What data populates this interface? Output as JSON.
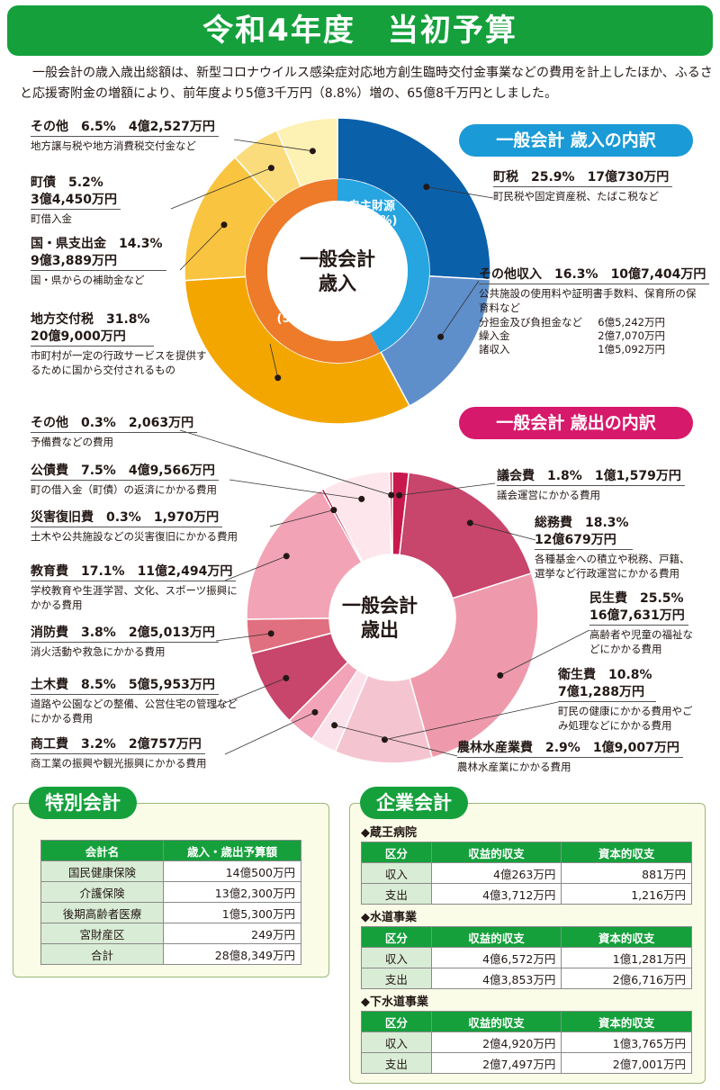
{
  "banner": "令和4年度　当初予算",
  "intro": "一般会計の歳入歳出総額は、新型コロナウイルス感染症対応地方創生臨時交付金事業などの費用を計上したほか、ふるさと応援寄附金の増額により、前年度より5億3千万円（8.8%）増の、65億8千万円としました。",
  "revenue": {
    "heading": "一般会計 歳入の内訳",
    "center": [
      "一般会計",
      "歳入"
    ],
    "inner": [
      {
        "label": "自主財源",
        "pct": "(42.3%)",
        "value": 42.3
      },
      {
        "label": "依存財源",
        "pct": "(57.7%)",
        "value": 57.7
      }
    ]
  },
  "expenditure": {
    "heading": "一般会計 歳出の内訳",
    "center": [
      "一般会計",
      "歳出"
    ]
  },
  "chart_data": [
    {
      "type": "pie",
      "title": "一般会計 歳入の内訳",
      "slices": [
        {
          "name": "町税",
          "pct": 25.9,
          "pct_text": "25.9%",
          "amount": "17億730万円",
          "desc": "町民税や固定資産税、たばこ税など",
          "color": "#0b60aa"
        },
        {
          "name": "その他収入",
          "pct": 16.3,
          "pct_text": "16.3%",
          "amount": "10億7,404万円",
          "desc": "公共施設の使用料や証明書手数料、保育所の保育料など",
          "color": "#5f8fca",
          "sub": [
            [
              "分担金及び負担金など",
              "6億5,242万円"
            ],
            [
              "繰入金",
              "2億7,070万円"
            ],
            [
              "諸収入",
              "1億5,092万円"
            ]
          ]
        },
        {
          "name": "地方交付税",
          "pct": 31.8,
          "pct_text": "31.8%",
          "amount": "20億9,000万円",
          "desc": "市町村が一定の行政サービスを提供するために国から交付されるもの",
          "color": "#f3a600"
        },
        {
          "name": "国・県支出金",
          "pct": 14.3,
          "pct_text": "14.3%",
          "amount": "9億3,889万円",
          "desc": "国・県からの補助金など",
          "color": "#f9c440"
        },
        {
          "name": "町債",
          "pct": 5.2,
          "pct_text": "5.2%",
          "amount": "3億4,450万円",
          "desc": "町借入金",
          "color": "#fbdc7c"
        },
        {
          "name": "その他",
          "pct": 6.5,
          "pct_text": "6.5%",
          "amount": "4億2,527万円",
          "desc": "地方譲与税や地方消費税交付金など",
          "color": "#fdf1b3"
        }
      ]
    },
    {
      "type": "pie",
      "title": "一般会計 歳出の内訳",
      "slices": [
        {
          "name": "議会費",
          "pct": 1.8,
          "pct_text": "1.8%",
          "amount": "1億1,579万円",
          "desc": "議会運営にかかる費用",
          "color": "#c8194f"
        },
        {
          "name": "総務費",
          "pct": 18.3,
          "pct_text": "18.3%",
          "amount": "12億679万円",
          "desc": "各種基金への積立や税務、戸籍、選挙など行政運営にかかる費用",
          "color": "#c8456c"
        },
        {
          "name": "民生費",
          "pct": 25.5,
          "pct_text": "25.5%",
          "amount": "16億7,631万円",
          "desc": "高齢者や児童の福祉などにかかる費用",
          "color": "#ef9aac"
        },
        {
          "name": "衛生費",
          "pct": 10.8,
          "pct_text": "10.8%",
          "amount": "7億1,288万円",
          "desc": "町民の健康にかかる費用やごみ処理などにかかる費用",
          "color": "#f5c4d1"
        },
        {
          "name": "農林水産業費",
          "pct": 2.9,
          "pct_text": "2.9%",
          "amount": "1億9,007万円",
          "desc": "農林水産業にかかる費用",
          "color": "#fbe2ea"
        },
        {
          "name": "商工費",
          "pct": 3.2,
          "pct_text": "3.2%",
          "amount": "2億757万円",
          "desc": "商工業の振興や観光振興にかかる費用",
          "color": "#f2a3b7"
        },
        {
          "name": "土木費",
          "pct": 8.5,
          "pct_text": "8.5%",
          "amount": "5億5,953万円",
          "desc": "道路や公園などの整備、公営住宅の管理などにかかる費用",
          "color": "#c8456c"
        },
        {
          "name": "消防費",
          "pct": 3.8,
          "pct_text": "3.8%",
          "amount": "2億5,013万円",
          "desc": "消火活動や救急にかかる費用",
          "color": "#e0707f"
        },
        {
          "name": "教育費",
          "pct": 17.1,
          "pct_text": "17.1%",
          "amount": "11億2,494万円",
          "desc": "学校教育や生涯学習、文化、スポーツ振興にかかる費用",
          "color": "#f2a3b5"
        },
        {
          "name": "災害復旧費",
          "pct": 0.3,
          "pct_text": "0.3%",
          "amount": "1,970万円",
          "desc": "土木や公共施設などの災害復旧にかかる費用",
          "color": "#b8103e"
        },
        {
          "name": "公債費",
          "pct": 7.5,
          "pct_text": "7.5%",
          "amount": "4億9,566万円",
          "desc": "町の借入金（町債）の返済にかかる費用",
          "color": "#fde6ec"
        },
        {
          "name": "その他",
          "pct": 0.3,
          "pct_text": "0.3%",
          "amount": "2,063万円",
          "desc": "予備費などの費用",
          "color": "#e8375e"
        }
      ]
    },
    {
      "type": "table",
      "title": "特別会計",
      "columns": [
        "会計名",
        "歳入・歳出予算額"
      ],
      "rows": [
        [
          "国民健康保険",
          "14億500万円"
        ],
        [
          "介護保険",
          "13億2,300万円"
        ],
        [
          "後期高齢者医療",
          "1億5,300万円"
        ],
        [
          "宮財産区",
          "249万円"
        ],
        [
          "合計",
          "28億8,349万円"
        ]
      ]
    },
    {
      "type": "table",
      "title": "企業会計",
      "columns": [
        "区分",
        "収益的収支",
        "資本的収支"
      ],
      "groups": [
        {
          "name": "◆蔵王病院",
          "rows": [
            [
              "収入",
              "4億263万円",
              "881万円"
            ],
            [
              "支出",
              "4億3,712万円",
              "1,216万円"
            ]
          ]
        },
        {
          "name": "◆水道事業",
          "rows": [
            [
              "収入",
              "4億6,572万円",
              "1億1,281万円"
            ],
            [
              "支出",
              "4億3,853万円",
              "2億6,716万円"
            ]
          ]
        },
        {
          "name": "◆下水道事業",
          "rows": [
            [
              "収入",
              "2億4,920万円",
              "1億3,765万円"
            ],
            [
              "支出",
              "2億7,497万円",
              "2億7,001万円"
            ]
          ]
        }
      ]
    }
  ],
  "special": {
    "tag": "特別会計"
  },
  "enterprise": {
    "tag": "企業会計"
  }
}
